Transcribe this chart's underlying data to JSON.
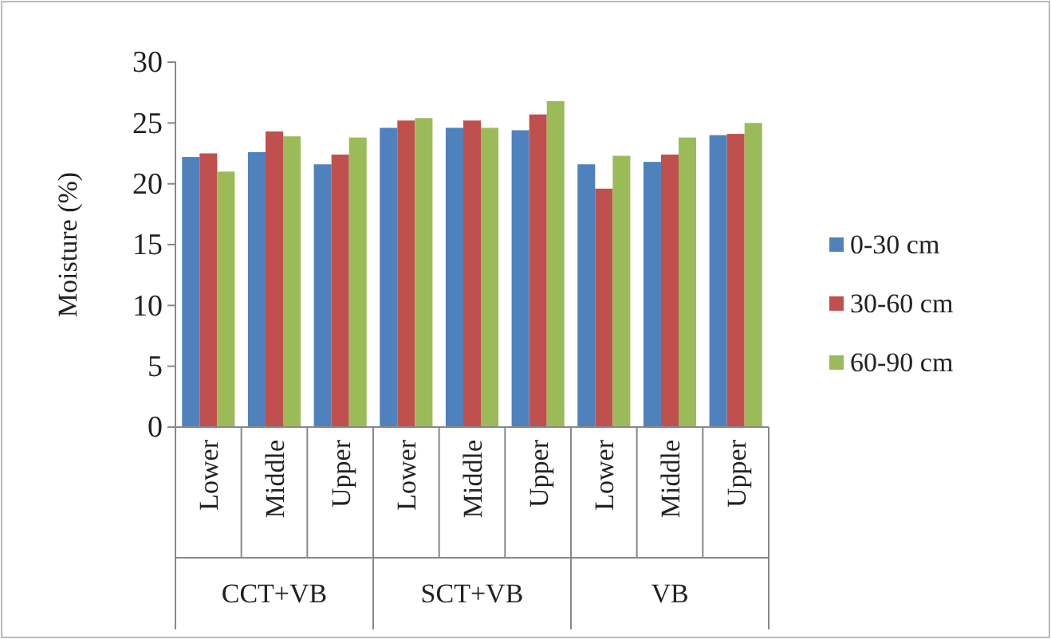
{
  "chart_data": {
    "type": "bar",
    "ylabel": "Moisture (%)",
    "categories": [
      "Lower",
      "Middle",
      "Upper",
      "Lower",
      "Middle",
      "Upper",
      "Lower",
      "Middle",
      "Upper"
    ],
    "series": [
      {
        "name": "0-30 cm",
        "color": "#4f81bd",
        "values": [
          22.2,
          22.6,
          21.6,
          24.6,
          24.6,
          24.4,
          21.6,
          21.8,
          24.0
        ]
      },
      {
        "name": "30-60 cm",
        "color": "#c0504d",
        "values": [
          22.5,
          24.3,
          22.4,
          25.2,
          25.2,
          25.7,
          19.6,
          22.4,
          24.1
        ]
      },
      {
        "name": "60-90 cm",
        "color": "#9bbb59",
        "values": [
          21.0,
          23.9,
          23.8,
          25.4,
          24.6,
          26.8,
          22.3,
          23.8,
          25.0
        ]
      }
    ],
    "ylim": [
      0,
      30
    ],
    "yticks": [
      0,
      5,
      10,
      15,
      20,
      25,
      30
    ],
    "grid": false,
    "legend": "right",
    "annotations": [
      "CCT+VB",
      "SCT+VB",
      "VB"
    ]
  }
}
